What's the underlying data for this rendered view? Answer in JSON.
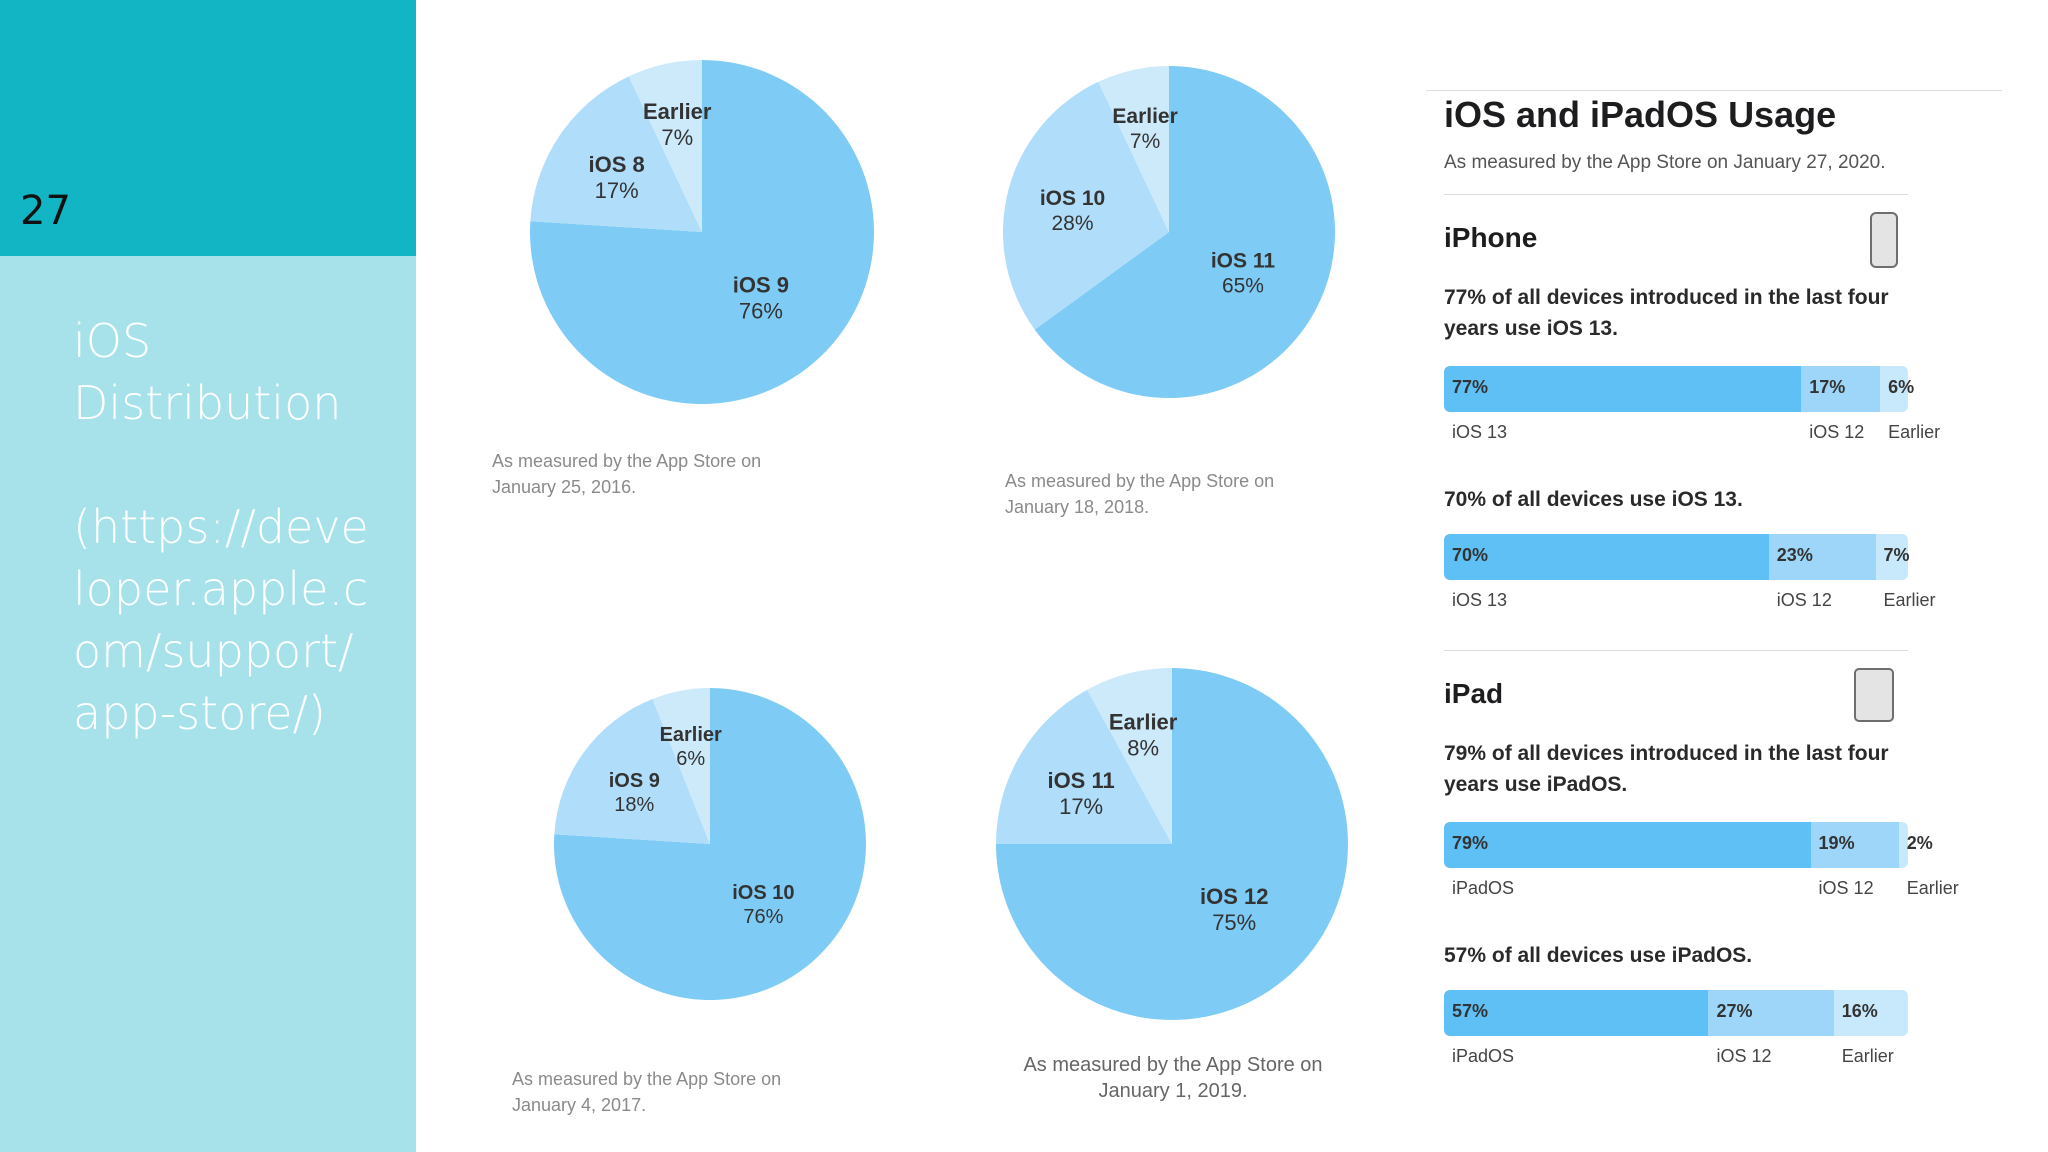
{
  "slide": {
    "number": "27",
    "title": "iOS\nDistribution\n\n(https://developer.apple.com/support/app-store/)"
  },
  "colors": {
    "main": "#7ecbf6",
    "light": "#b0defa",
    "lighter": "#cdeafb",
    "bar_main": "#5ec0f4",
    "bar_mid": "#9dd6f8",
    "bar_light": "#c8e8fb"
  },
  "chart_data": [
    {
      "type": "pie",
      "slices": [
        {
          "label": "iOS 9",
          "value": 76,
          "pct_label": "76%"
        },
        {
          "label": "iOS 8",
          "value": 17,
          "pct_label": "17%"
        },
        {
          "label": "Earlier",
          "value": 7,
          "pct_label": "7%"
        }
      ],
      "caption": "As measured by the App Store on\nJanuary 25, 2016."
    },
    {
      "type": "pie",
      "slices": [
        {
          "label": "iOS 11",
          "value": 65,
          "pct_label": "65%"
        },
        {
          "label": "iOS 10",
          "value": 28,
          "pct_label": "28%"
        },
        {
          "label": "Earlier",
          "value": 7,
          "pct_label": "7%"
        }
      ],
      "caption": "As measured by the App Store on\nJanuary 18, 2018."
    },
    {
      "type": "pie",
      "slices": [
        {
          "label": "iOS 10",
          "value": 76,
          "pct_label": "76%"
        },
        {
          "label": "iOS 9",
          "value": 18,
          "pct_label": "18%"
        },
        {
          "label": "Earlier",
          "value": 6,
          "pct_label": "6%"
        }
      ],
      "caption": "As measured by the App Store on\nJanuary 4, 2017."
    },
    {
      "type": "pie",
      "slices": [
        {
          "label": "iOS 12",
          "value": 75,
          "pct_label": "75%"
        },
        {
          "label": "iOS 11",
          "value": 17,
          "pct_label": "17%"
        },
        {
          "label": "Earlier",
          "value": 8,
          "pct_label": "8%"
        }
      ],
      "caption": "As measured by the App Store on\nJanuary 1, 2019."
    },
    {
      "type": "bar",
      "orientation": "horizontal-stacked",
      "group": "iPhone",
      "statement": "77% of all devices introduced in the last four years use iOS 13.",
      "segments": [
        {
          "label": "iOS 13",
          "value": 77,
          "pct_label": "77%"
        },
        {
          "label": "iOS 12",
          "value": 17,
          "pct_label": "17%"
        },
        {
          "label": "Earlier",
          "value": 6,
          "pct_label": "6%"
        }
      ]
    },
    {
      "type": "bar",
      "orientation": "horizontal-stacked",
      "group": "iPhone",
      "statement": "70% of all devices use iOS 13.",
      "segments": [
        {
          "label": "iOS 13",
          "value": 70,
          "pct_label": "70%"
        },
        {
          "label": "iOS 12",
          "value": 23,
          "pct_label": "23%"
        },
        {
          "label": "Earlier",
          "value": 7,
          "pct_label": "7%"
        }
      ]
    },
    {
      "type": "bar",
      "orientation": "horizontal-stacked",
      "group": "iPad",
      "statement": "79% of all devices introduced in the last four years use iPadOS.",
      "segments": [
        {
          "label": "iPadOS",
          "value": 79,
          "pct_label": "79%"
        },
        {
          "label": "iOS 12",
          "value": 19,
          "pct_label": "19%"
        },
        {
          "label": "Earlier",
          "value": 2,
          "pct_label": "2%"
        }
      ]
    },
    {
      "type": "bar",
      "orientation": "horizontal-stacked",
      "group": "iPad",
      "statement": "57% of all devices use iPadOS.",
      "segments": [
        {
          "label": "iPadOS",
          "value": 57,
          "pct_label": "57%"
        },
        {
          "label": "iOS 12",
          "value": 27,
          "pct_label": "27%"
        },
        {
          "label": "Earlier",
          "value": 16,
          "pct_label": "16%"
        }
      ]
    }
  ],
  "usage": {
    "title": "iOS and iPadOS Usage",
    "subtitle": "As measured by the App Store on January 27, 2020.",
    "iphone": {
      "title": "iPhone",
      "icon": "iphone-icon"
    },
    "ipad": {
      "title": "iPad",
      "icon": "ipad-icon"
    }
  }
}
